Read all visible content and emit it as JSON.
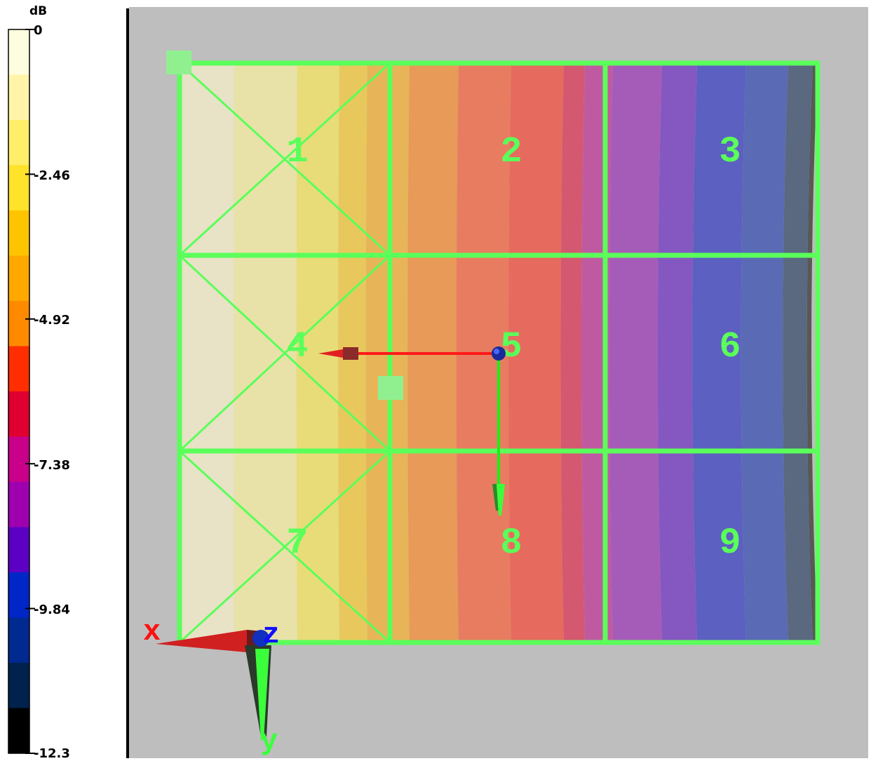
{
  "legend": {
    "unit": "dB",
    "ticks": [
      "0",
      "-2.46",
      "-4.92",
      "-7.38",
      "-9.84",
      "-12.3"
    ],
    "colors": [
      "#fffde0",
      "#fff4a8",
      "#ffee6a",
      "#ffe22a",
      "#ffc400",
      "#ffa800",
      "#ff8a00",
      "#ff2e00",
      "#e00030",
      "#c8008a",
      "#9e00b0",
      "#5c00c4",
      "#0026c8",
      "#002a90",
      "#00224c",
      "#000000"
    ]
  },
  "grid": {
    "cell_labels": [
      "1",
      "2",
      "3",
      "4",
      "5",
      "6",
      "7",
      "8",
      "9"
    ],
    "line_color": "#5aff5a",
    "background": "#bebebe"
  },
  "axes": {
    "x": "x",
    "y": "y",
    "z": "z"
  }
}
